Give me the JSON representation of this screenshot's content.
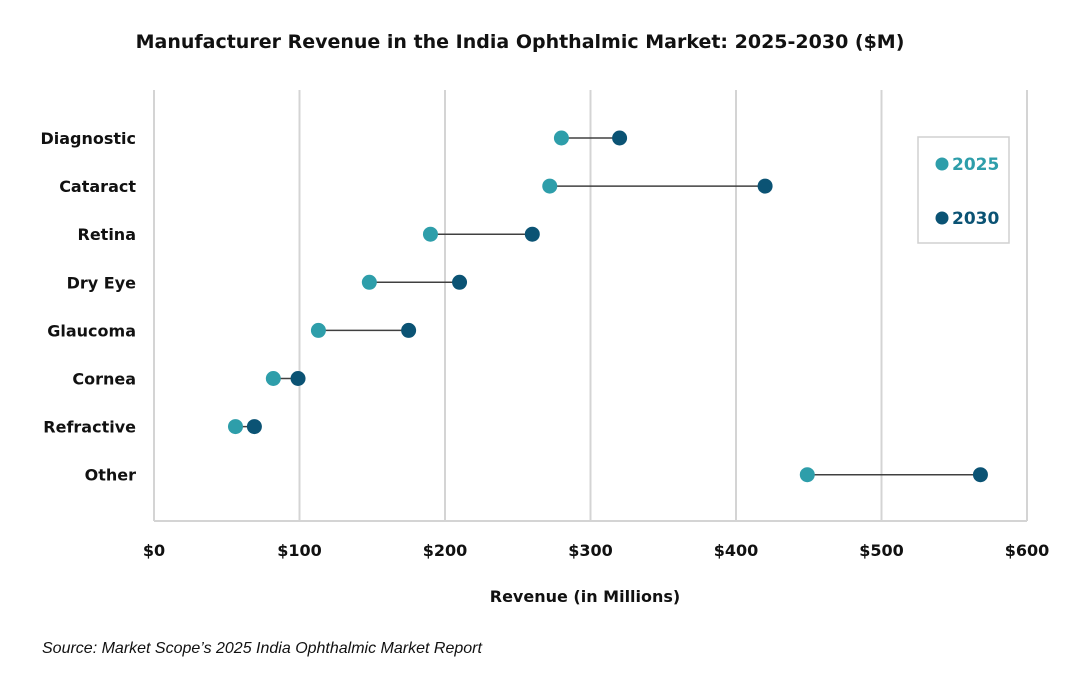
{
  "chart_data": {
    "type": "dumbbell",
    "title": "Manufacturer Revenue in the India Ophthalmic Market: 2025-2030 ($M)",
    "xlabel": "Revenue (in Millions)",
    "ylabel": "",
    "xlim": [
      0,
      600
    ],
    "xticks": [
      0,
      100,
      200,
      300,
      400,
      500,
      600
    ],
    "xtick_labels": [
      "$0",
      "$100",
      "$200",
      "$300",
      "$400",
      "$500",
      "$600"
    ],
    "grid": "vertical",
    "legend_position": "top-right",
    "categories": [
      "Diagnostic",
      "Cataract",
      "Retina",
      "Dry Eye",
      "Glaucoma",
      "Cornea",
      "Refractive",
      "Other"
    ],
    "series": [
      {
        "name": "2025",
        "color": "#2E9EAA",
        "values": [
          280,
          272,
          190,
          148,
          113,
          82,
          56,
          449
        ]
      },
      {
        "name": "2030",
        "color": "#0B5374",
        "values": [
          320,
          420,
          260,
          210,
          175,
          99,
          69,
          568
        ]
      }
    ]
  },
  "source": "Source: Market Scope’s 2025 India Ophthalmic Market Report"
}
